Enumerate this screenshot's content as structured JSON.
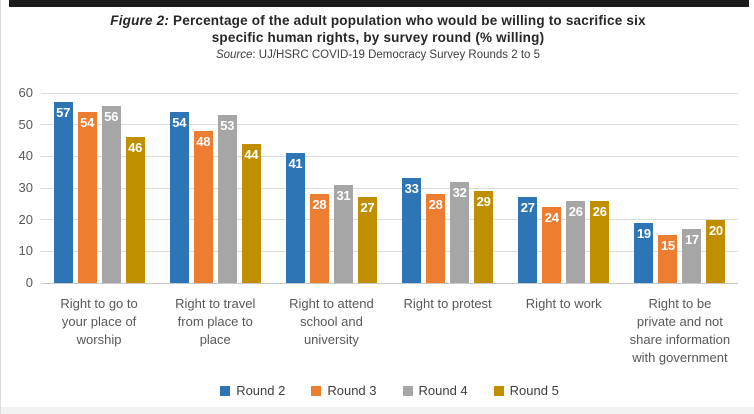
{
  "title": {
    "prefix": "Figure 2:",
    "line1_rest": " Percentage of the adult population who would be willing to sacrifice six",
    "line2": "specific human rights, by survey round (% willing)"
  },
  "source": {
    "prefix": "Source",
    "rest": ": UJ/HSRC COVID-19 Democracy Survey Rounds 2 to 5"
  },
  "chart_data": {
    "type": "bar",
    "title": "Figure 2: Percentage of the adult population who would be willing to sacrifice six specific human rights, by survey round (% willing)",
    "subtitle": "Source: UJ/HSRC COVID-19 Democracy Survey Rounds 2 to 5",
    "categories": [
      "Right to go to your place of worship",
      "Right to travel from place to place",
      "Right to attend school and university",
      "Right to protest",
      "Right to work",
      "Right to be private and not share information with government"
    ],
    "series": [
      {
        "name": "Round 2",
        "color": "#2E75B6",
        "values": [
          57,
          54,
          41,
          33,
          27,
          19
        ]
      },
      {
        "name": "Round 3",
        "color": "#ED7D31",
        "values": [
          54,
          48,
          28,
          28,
          24,
          15
        ]
      },
      {
        "name": "Round 4",
        "color": "#A6A6A6",
        "values": [
          56,
          53,
          31,
          32,
          26,
          17
        ]
      },
      {
        "name": "Round 5",
        "color": "#BF8F00",
        "values": [
          46,
          44,
          27,
          29,
          26,
          20
        ]
      }
    ],
    "xlabel": "",
    "ylabel": "",
    "ylim": [
      0,
      60
    ],
    "yticks": [
      0,
      10,
      20,
      30,
      40,
      50,
      60
    ],
    "grid": true,
    "gridline_color": "#dcdcdc",
    "value_labels": "inside-end-white-bold",
    "legend_position": "bottom-center"
  }
}
